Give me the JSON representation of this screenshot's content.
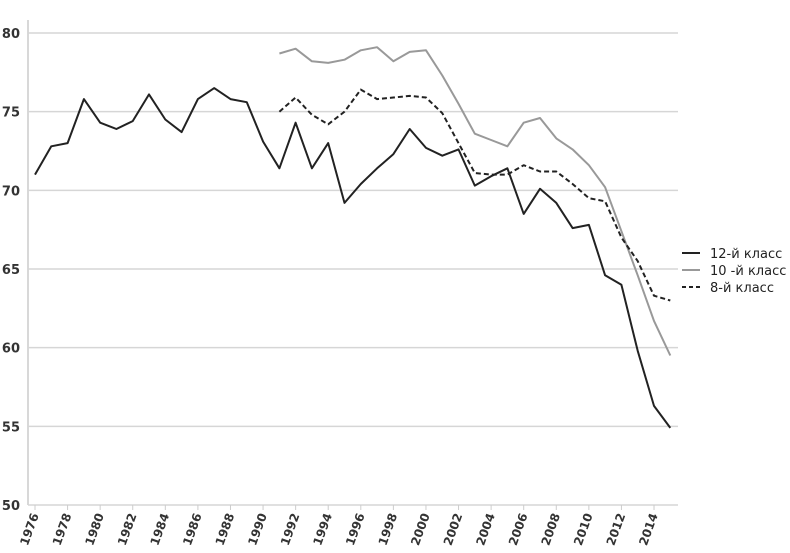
{
  "chart_data": {
    "type": "line",
    "title": "",
    "xlabel": "",
    "ylabel": "",
    "ylim": [
      50,
      80
    ],
    "yticks": [
      50,
      55,
      60,
      65,
      70,
      75,
      80
    ],
    "xlim": [
      1976,
      2015
    ],
    "xticks": [
      "1976",
      "1978",
      "1980",
      "1982",
      "1984",
      "1986",
      "1988",
      "1990",
      "1992",
      "1994",
      "1996",
      "1998",
      "2000",
      "2002",
      "2004",
      "2006",
      "2008",
      "2010",
      "2012",
      "2014"
    ],
    "grid": true,
    "legend_position": "right",
    "series": [
      {
        "name": "12-й класс",
        "color": "#222222",
        "style": "solid",
        "x": [
          1976,
          1977,
          1978,
          1979,
          1980,
          1981,
          1982,
          1983,
          1984,
          1985,
          1986,
          1987,
          1988,
          1989,
          1990,
          1991,
          1992,
          1993,
          1994,
          1995,
          1996,
          1997,
          1998,
          1999,
          2000,
          2001,
          2002,
          2003,
          2004,
          2005,
          2006,
          2007,
          2008,
          2009,
          2010,
          2011,
          2012,
          2013,
          2014,
          2015
        ],
        "values": [
          71.0,
          72.8,
          73.0,
          75.8,
          74.3,
          73.9,
          74.4,
          76.1,
          74.5,
          73.7,
          75.8,
          76.5,
          75.8,
          75.6,
          73.1,
          71.4,
          74.3,
          71.4,
          73.0,
          69.2,
          70.4,
          71.4,
          72.3,
          73.9,
          72.7,
          72.2,
          72.6,
          70.3,
          70.9,
          71.4,
          68.5,
          70.1,
          69.2,
          67.6,
          67.8,
          64.6,
          64.0,
          59.8,
          56.3,
          54.9
        ]
      },
      {
        "name": "10 -й класс",
        "color": "#999999",
        "style": "solid",
        "x": [
          1991,
          1992,
          1993,
          1994,
          1995,
          1996,
          1997,
          1998,
          1999,
          2000,
          2001,
          2002,
          2003,
          2004,
          2005,
          2006,
          2007,
          2008,
          2009,
          2010,
          2011,
          2012,
          2013,
          2014,
          2015
        ],
        "values": [
          78.7,
          79.0,
          78.2,
          78.1,
          78.3,
          78.9,
          79.1,
          78.2,
          78.8,
          78.9,
          77.3,
          75.5,
          73.6,
          73.2,
          72.8,
          74.3,
          74.6,
          73.3,
          72.6,
          71.6,
          70.2,
          67.4,
          64.6,
          61.7,
          59.5
        ]
      },
      {
        "name": "8-й класс",
        "color": "#222222",
        "style": "dashed",
        "x": [
          1991,
          1992,
          1993,
          1994,
          1995,
          1996,
          1997,
          1998,
          1999,
          2000,
          2001,
          2002,
          2003,
          2004,
          2005,
          2006,
          2007,
          2008,
          2009,
          2010,
          2011,
          2012,
          2013,
          2014,
          2015
        ],
        "values": [
          75.0,
          75.9,
          74.8,
          74.2,
          75.0,
          76.4,
          75.8,
          75.9,
          76.0,
          75.9,
          74.9,
          73.0,
          71.1,
          71.0,
          71.0,
          71.6,
          71.2,
          71.2,
          70.4,
          69.5,
          69.3,
          67.0,
          65.5,
          63.3,
          63.0
        ]
      }
    ]
  }
}
